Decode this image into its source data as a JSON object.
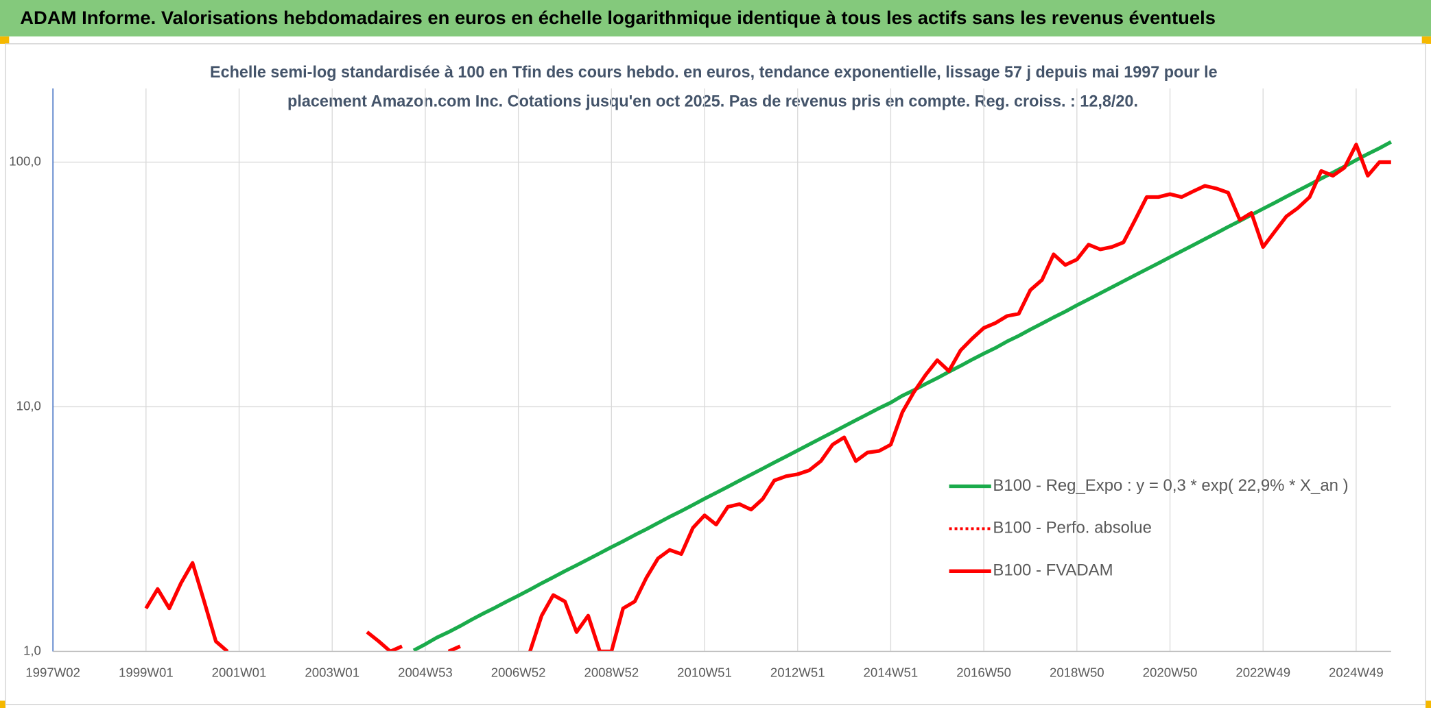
{
  "chart_data": {
    "type": "line",
    "title": "ADAM Informe. Valorisations hebdomadaires en euros en échelle logarithmique identique à tous les actifs sans les revenus éventuels",
    "subtitle": [
      "Echelle semi-log standardisée à 100 en Tfin des cours hebdo. en euros, tendance exponentielle, lissage 57 j depuis mai 1997 pour le",
      "placement Amazon.com Inc. Cotations jusqu'en oct 2025. Pas de revenus pris en compte. Reg. croiss. : 12,8/20."
    ],
    "log_scale": true,
    "grid": true,
    "legend": "right",
    "ylim": [
      1,
      200
    ],
    "yticks": [
      {
        "value": 1,
        "label": "1,0"
      },
      {
        "value": 10,
        "label": "10,0"
      },
      {
        "value": 100,
        "label": "100,0"
      }
    ],
    "categories": [
      "1997W02",
      null,
      null,
      null,
      null,
      null,
      null,
      null,
      "1999W01",
      null,
      null,
      null,
      null,
      null,
      null,
      null,
      "2001W01",
      null,
      null,
      null,
      null,
      null,
      null,
      null,
      "2003W01",
      null,
      null,
      null,
      null,
      null,
      null,
      null,
      "2004W53",
      null,
      null,
      null,
      null,
      null,
      null,
      null,
      "2006W52",
      null,
      null,
      null,
      null,
      null,
      null,
      null,
      "2008W52",
      null,
      null,
      null,
      null,
      null,
      null,
      null,
      "2010W51",
      null,
      null,
      null,
      null,
      null,
      null,
      null,
      "2012W51",
      null,
      null,
      null,
      null,
      null,
      null,
      null,
      "2014W51",
      null,
      null,
      null,
      null,
      null,
      null,
      null,
      "2016W50",
      null,
      null,
      null,
      null,
      null,
      null,
      null,
      "2018W50",
      null,
      null,
      null,
      null,
      null,
      null,
      null,
      "2020W50",
      null,
      null,
      null,
      null,
      null,
      null,
      null,
      "2022W49",
      null,
      null,
      null,
      null,
      null,
      null,
      null,
      "2024W49",
      null,
      null,
      null
    ],
    "series": [
      {
        "name": "B100 - Reg_Expo : y = 0,3 * exp( 22,9% *  X_an )",
        "color": "#1aab4b",
        "style": "solid",
        "values": [
          null,
          null,
          null,
          null,
          null,
          null,
          null,
          null,
          null,
          null,
          null,
          null,
          null,
          null,
          null,
          null,
          null,
          null,
          null,
          null,
          null,
          null,
          null,
          null,
          null,
          null,
          null,
          null,
          null,
          null,
          null,
          1.01,
          1.07,
          1.14,
          1.2,
          1.27,
          1.35,
          1.43,
          1.51,
          1.6,
          1.69,
          1.79,
          1.9,
          2.01,
          2.13,
          2.25,
          2.38,
          2.52,
          2.67,
          2.82,
          2.99,
          3.16,
          3.35,
          3.55,
          3.75,
          3.97,
          4.21,
          4.45,
          4.71,
          4.99,
          5.28,
          5.59,
          5.92,
          6.26,
          6.63,
          7.02,
          7.43,
          7.86,
          8.32,
          8.81,
          9.32,
          9.87,
          10.4,
          11.1,
          11.7,
          12.4,
          13.1,
          13.9,
          14.7,
          15.6,
          16.5,
          17.4,
          18.5,
          19.5,
          20.7,
          21.9,
          23.2,
          24.5,
          26.0,
          27.5,
          29.1,
          30.8,
          32.6,
          34.5,
          36.5,
          38.6,
          40.9,
          43.3,
          45.8,
          48.5,
          51.3,
          54.4,
          57.5,
          60.9,
          64.5,
          68.2,
          72.3,
          76.5,
          80.9,
          85.7,
          90.7,
          96.0,
          102,
          108,
          114,
          121
        ]
      },
      {
        "name": "B100 - Perfo. absolue",
        "color": "#ff0000",
        "style": "dotted",
        "values": [
          null,
          null,
          null,
          null,
          null,
          null,
          null,
          null,
          1.5,
          1.8,
          1.5,
          1.9,
          2.3,
          1.6,
          1.1,
          1.0,
          null,
          null,
          null,
          null,
          null,
          null,
          null,
          null,
          null,
          null,
          null,
          1.2,
          1.1,
          1.0,
          1.05,
          null,
          null,
          null,
          1.0,
          1.05,
          null,
          null,
          null,
          null,
          null,
          1.0,
          1.4,
          1.7,
          1.6,
          1.2,
          1.4,
          1.0,
          1.0,
          1.5,
          1.6,
          2.0,
          2.4,
          2.6,
          2.5,
          3.2,
          3.6,
          3.3,
          3.9,
          4.0,
          3.8,
          4.2,
          5.0,
          5.2,
          5.3,
          5.5,
          6.0,
          7.0,
          7.5,
          6.0,
          6.5,
          6.6,
          7.0,
          9.5,
          11.5,
          13.5,
          15.5,
          14.0,
          17,
          19,
          21,
          22,
          23.5,
          24,
          30,
          33,
          42,
          38,
          40,
          46,
          44,
          45,
          47,
          58,
          72,
          72,
          74,
          72,
          76,
          80,
          78,
          75,
          58,
          62,
          45,
          52,
          60,
          65,
          72,
          92,
          88,
          95,
          118,
          88,
          100,
          100
        ]
      },
      {
        "name": "B100 - FVADAM",
        "color": "#ff0000",
        "style": "solid",
        "values": [
          null,
          null,
          null,
          null,
          null,
          null,
          null,
          null,
          1.5,
          1.8,
          1.5,
          1.9,
          2.3,
          1.6,
          1.1,
          1.0,
          null,
          null,
          null,
          null,
          null,
          null,
          null,
          null,
          null,
          null,
          null,
          1.2,
          1.1,
          1.0,
          1.05,
          null,
          null,
          null,
          1.0,
          1.05,
          null,
          null,
          null,
          null,
          null,
          1.0,
          1.4,
          1.7,
          1.6,
          1.2,
          1.4,
          1.0,
          1.0,
          1.5,
          1.6,
          2.0,
          2.4,
          2.6,
          2.5,
          3.2,
          3.6,
          3.3,
          3.9,
          4.0,
          3.8,
          4.2,
          5.0,
          5.2,
          5.3,
          5.5,
          6.0,
          7.0,
          7.5,
          6.0,
          6.5,
          6.6,
          7.0,
          9.5,
          11.5,
          13.5,
          15.5,
          14.0,
          17,
          19,
          21,
          22,
          23.5,
          24,
          30,
          33,
          42,
          38,
          40,
          46,
          44,
          45,
          47,
          58,
          72,
          72,
          74,
          72,
          76,
          80,
          78,
          75,
          58,
          62,
          45,
          52,
          60,
          65,
          72,
          92,
          88,
          95,
          118,
          88,
          100,
          100
        ]
      }
    ]
  }
}
